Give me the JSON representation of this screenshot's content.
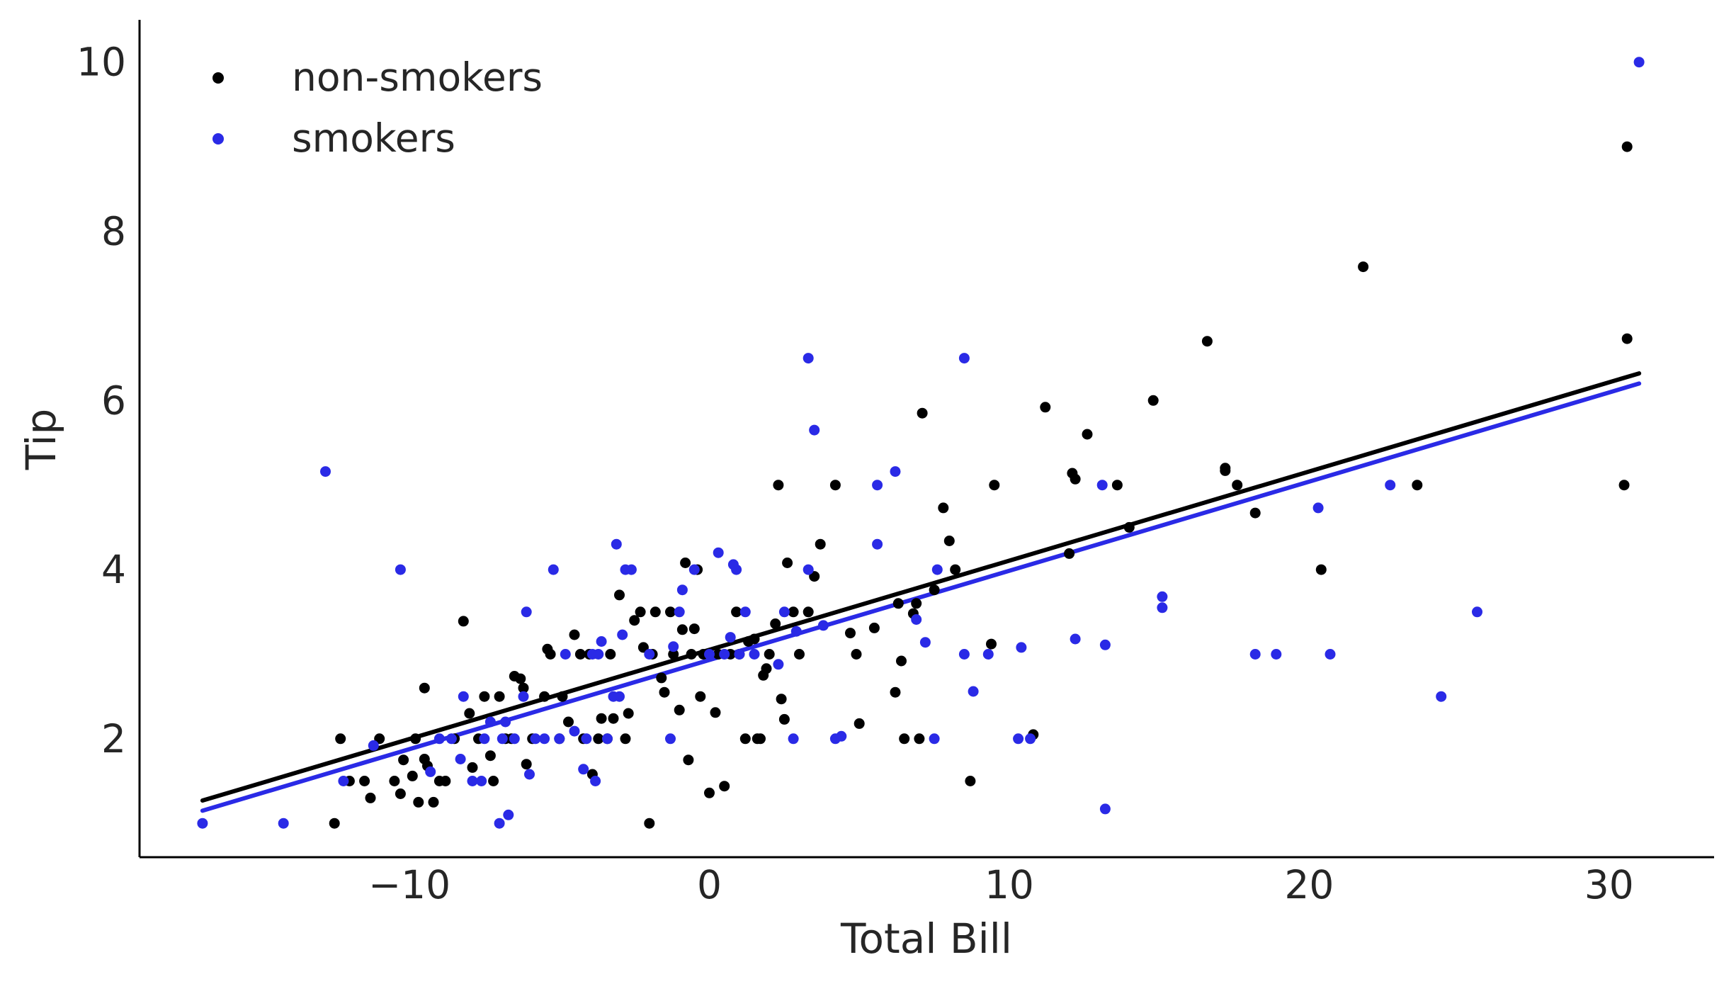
{
  "chart_data": {
    "type": "scatter",
    "title": "",
    "xlabel": "Total Bill",
    "ylabel": "Tip",
    "xlim": [
      -19.0,
      33.5
    ],
    "ylim": [
      0.6,
      10.5
    ],
    "xticks": [
      -10,
      0,
      10,
      20,
      30
    ],
    "xtick_labels": [
      "−10",
      "0",
      "10",
      "20",
      "30"
    ],
    "yticks": [
      2,
      4,
      6,
      8,
      10
    ],
    "ytick_labels": [
      "2",
      "4",
      "6",
      "8",
      "10"
    ],
    "grid": false,
    "legend_position": "top-left",
    "series": [
      {
        "name": "non-smokers",
        "color": "#000000",
        "points": [
          [
            -12.5,
            1.0
          ],
          [
            -12.3,
            2.0
          ],
          [
            -12.0,
            1.5
          ],
          [
            -11.5,
            1.5
          ],
          [
            -11.3,
            1.3
          ],
          [
            -11.0,
            2.0
          ],
          [
            -10.5,
            1.5
          ],
          [
            -10.3,
            1.35
          ],
          [
            -10.2,
            1.75
          ],
          [
            -9.9,
            1.56
          ],
          [
            -9.8,
            2.0
          ],
          [
            -9.7,
            1.25
          ],
          [
            -9.5,
            1.76
          ],
          [
            -9.5,
            2.6
          ],
          [
            -9.4,
            1.68
          ],
          [
            -9.2,
            1.25
          ],
          [
            -9.0,
            1.5
          ],
          [
            -8.8,
            1.5
          ],
          [
            -8.5,
            2.0
          ],
          [
            -8.2,
            3.39
          ],
          [
            -8.0,
            2.3
          ],
          [
            -7.9,
            1.66
          ],
          [
            -7.7,
            2.0
          ],
          [
            -7.5,
            2.5
          ],
          [
            -7.3,
            1.8
          ],
          [
            -7.2,
            1.5
          ],
          [
            -7.0,
            2.5
          ],
          [
            -6.8,
            2.0
          ],
          [
            -6.6,
            2.0
          ],
          [
            -6.5,
            2.74
          ],
          [
            -6.3,
            2.71
          ],
          [
            -6.2,
            2.6
          ],
          [
            -6.1,
            1.7
          ],
          [
            -5.9,
            2.0
          ],
          [
            -5.5,
            2.5
          ],
          [
            -5.4,
            3.06
          ],
          [
            -5.3,
            3.0
          ],
          [
            -5.0,
            2.0
          ],
          [
            -4.9,
            2.5
          ],
          [
            -4.7,
            2.2
          ],
          [
            -4.5,
            3.23
          ],
          [
            -4.3,
            3.0
          ],
          [
            -4.2,
            2.0
          ],
          [
            -4.0,
            3.0
          ],
          [
            -3.9,
            1.58
          ],
          [
            -3.7,
            2.0
          ],
          [
            -3.6,
            2.24
          ],
          [
            -3.4,
            2.0
          ],
          [
            -3.3,
            3.0
          ],
          [
            -3.2,
            2.24
          ],
          [
            -3.0,
            3.7
          ],
          [
            -2.8,
            2.0
          ],
          [
            -2.7,
            2.3
          ],
          [
            -2.5,
            3.4
          ],
          [
            -2.3,
            3.5
          ],
          [
            -2.2,
            3.08
          ],
          [
            -2.0,
            1.0
          ],
          [
            -1.9,
            3.0
          ],
          [
            -1.8,
            3.5
          ],
          [
            -1.6,
            2.72
          ],
          [
            -1.5,
            2.55
          ],
          [
            -1.3,
            3.5
          ],
          [
            -1.2,
            3.0
          ],
          [
            -1.0,
            2.34
          ],
          [
            -0.9,
            3.29
          ],
          [
            -0.8,
            4.08
          ],
          [
            -0.7,
            1.75
          ],
          [
            -0.6,
            3.0
          ],
          [
            -0.5,
            3.3
          ],
          [
            -0.4,
            4.0
          ],
          [
            -0.3,
            2.5
          ],
          [
            -0.2,
            3.0
          ],
          [
            0.0,
            1.36
          ],
          [
            0.2,
            2.31
          ],
          [
            0.3,
            3.0
          ],
          [
            0.5,
            1.44
          ],
          [
            0.7,
            3.0
          ],
          [
            0.9,
            3.5
          ],
          [
            1.0,
            3.0
          ],
          [
            1.2,
            2.0
          ],
          [
            1.3,
            3.15
          ],
          [
            1.5,
            3.18
          ],
          [
            1.6,
            2.0
          ],
          [
            1.7,
            2.0
          ],
          [
            1.8,
            2.75
          ],
          [
            1.9,
            2.83
          ],
          [
            2.0,
            3.0
          ],
          [
            2.2,
            3.36
          ],
          [
            2.3,
            5.0
          ],
          [
            2.4,
            2.47
          ],
          [
            2.5,
            2.23
          ],
          [
            2.6,
            4.08
          ],
          [
            2.8,
            3.5
          ],
          [
            3.0,
            3.0
          ],
          [
            3.3,
            3.5
          ],
          [
            3.5,
            3.92
          ],
          [
            3.7,
            4.3
          ],
          [
            4.2,
            5.0
          ],
          [
            4.7,
            3.25
          ],
          [
            4.9,
            3.0
          ],
          [
            5.0,
            2.18
          ],
          [
            5.5,
            3.31
          ],
          [
            6.2,
            2.55
          ],
          [
            6.3,
            3.6
          ],
          [
            6.4,
            2.92
          ],
          [
            6.5,
            2.0
          ],
          [
            6.8,
            3.48
          ],
          [
            7.0,
            2.0
          ],
          [
            6.9,
            3.6
          ],
          [
            7.1,
            5.85
          ],
          [
            7.5,
            3.76
          ],
          [
            7.8,
            4.73
          ],
          [
            8.0,
            4.34
          ],
          [
            8.2,
            4.0
          ],
          [
            8.7,
            1.5
          ],
          [
            9.4,
            3.12
          ],
          [
            9.5,
            5.0
          ],
          [
            10.8,
            2.05
          ],
          [
            11.2,
            5.92
          ],
          [
            12.0,
            4.19
          ],
          [
            12.1,
            5.14
          ],
          [
            12.2,
            5.07
          ],
          [
            12.6,
            5.6
          ],
          [
            13.6,
            5.0
          ],
          [
            14.0,
            4.5
          ],
          [
            14.8,
            6.0
          ],
          [
            16.6,
            6.7
          ],
          [
            17.2,
            5.2
          ],
          [
            17.2,
            5.17
          ],
          [
            17.6,
            5.0
          ],
          [
            18.2,
            4.67
          ],
          [
            20.4,
            4.0
          ],
          [
            21.8,
            7.58
          ],
          [
            23.6,
            5.0
          ],
          [
            30.6,
            9.0
          ],
          [
            30.6,
            6.73
          ],
          [
            30.5,
            5.0
          ]
        ],
        "fit": [
          [
            -16.9,
            1.27
          ],
          [
            31.0,
            6.32
          ]
        ]
      },
      {
        "name": "smokers",
        "color": "#2a2ae6",
        "points": [
          [
            -16.9,
            1.0
          ],
          [
            -14.2,
            1.0
          ],
          [
            -12.8,
            5.16
          ],
          [
            -12.2,
            1.5
          ],
          [
            -11.2,
            1.92
          ],
          [
            -10.3,
            4.0
          ],
          [
            -9.3,
            1.61
          ],
          [
            -9.0,
            2.0
          ],
          [
            -8.6,
            2.0
          ],
          [
            -8.3,
            1.76
          ],
          [
            -8.2,
            2.5
          ],
          [
            -7.9,
            1.5
          ],
          [
            -7.6,
            1.5
          ],
          [
            -7.5,
            2.0
          ],
          [
            -7.3,
            2.2
          ],
          [
            -7.0,
            1.0
          ],
          [
            -6.9,
            2.0
          ],
          [
            -6.8,
            2.2
          ],
          [
            -6.7,
            1.1
          ],
          [
            -6.5,
            2.0
          ],
          [
            -6.2,
            2.5
          ],
          [
            -6.1,
            3.5
          ],
          [
            -6.0,
            1.58
          ],
          [
            -5.8,
            2.0
          ],
          [
            -5.5,
            2.0
          ],
          [
            -5.2,
            4.0
          ],
          [
            -5.0,
            2.0
          ],
          [
            -4.8,
            3.0
          ],
          [
            -4.5,
            2.09
          ],
          [
            -4.2,
            1.64
          ],
          [
            -4.1,
            2.0
          ],
          [
            -3.9,
            3.0
          ],
          [
            -3.8,
            1.5
          ],
          [
            -3.7,
            3.0
          ],
          [
            -3.6,
            3.15
          ],
          [
            -3.4,
            2.0
          ],
          [
            -3.2,
            2.5
          ],
          [
            -3.1,
            4.3
          ],
          [
            -3.0,
            2.5
          ],
          [
            -2.9,
            3.23
          ],
          [
            -2.8,
            4.0
          ],
          [
            -2.6,
            4.0
          ],
          [
            -2.0,
            3.0
          ],
          [
            -1.3,
            2.0
          ],
          [
            -1.2,
            3.09
          ],
          [
            -1.0,
            3.5
          ],
          [
            -0.9,
            3.76
          ],
          [
            -0.5,
            4.0
          ],
          [
            0.0,
            3.0
          ],
          [
            0.3,
            4.2
          ],
          [
            0.5,
            3.0
          ],
          [
            0.7,
            3.2
          ],
          [
            0.8,
            4.06
          ],
          [
            0.9,
            4.0
          ],
          [
            1.0,
            3.0
          ],
          [
            1.2,
            3.5
          ],
          [
            1.5,
            3.0
          ],
          [
            2.3,
            2.88
          ],
          [
            2.5,
            3.5
          ],
          [
            2.8,
            2.0
          ],
          [
            2.9,
            3.27
          ],
          [
            3.3,
            4.0
          ],
          [
            3.3,
            6.5
          ],
          [
            3.5,
            5.65
          ],
          [
            3.8,
            3.34
          ],
          [
            4.2,
            2.0
          ],
          [
            4.4,
            2.03
          ],
          [
            5.6,
            5.0
          ],
          [
            5.6,
            4.3
          ],
          [
            6.2,
            5.16
          ],
          [
            6.9,
            3.41
          ],
          [
            7.2,
            3.14
          ],
          [
            7.6,
            4.0
          ],
          [
            7.5,
            2.0
          ],
          [
            8.5,
            3.0
          ],
          [
            8.5,
            6.5
          ],
          [
            8.8,
            2.56
          ],
          [
            9.3,
            3.0
          ],
          [
            10.3,
            2.0
          ],
          [
            10.4,
            3.08
          ],
          [
            10.7,
            2.0
          ],
          [
            12.2,
            3.18
          ],
          [
            13.1,
            5.0
          ],
          [
            13.2,
            3.11
          ],
          [
            13.2,
            1.17
          ],
          [
            15.1,
            3.55
          ],
          [
            15.1,
            3.68
          ],
          [
            18.2,
            3.0
          ],
          [
            18.9,
            3.0
          ],
          [
            20.3,
            4.73
          ],
          [
            20.7,
            3.0
          ],
          [
            22.7,
            5.0
          ],
          [
            24.4,
            2.5
          ],
          [
            25.6,
            3.5
          ],
          [
            31.0,
            10.0
          ]
        ],
        "fit": [
          [
            -16.9,
            1.15
          ],
          [
            31.0,
            6.2
          ]
        ]
      }
    ]
  }
}
